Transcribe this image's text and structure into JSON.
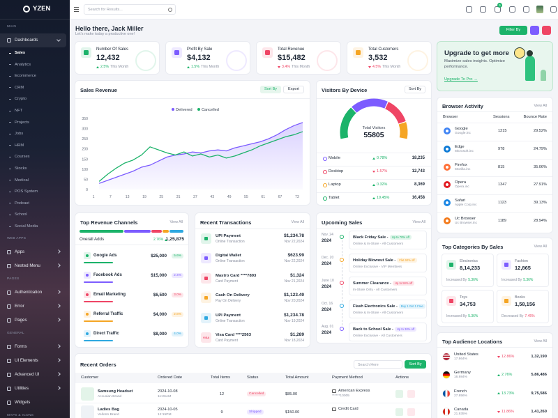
{
  "sidebar": {
    "brand": "YZEN",
    "active_child": 0,
    "sections": [
      {
        "title": "MAIN",
        "items": [
          {
            "label": "Dashboards",
            "expandable": true,
            "children": [
              "Sales",
              "Analytics",
              "Ecommerce",
              "CRM",
              "Crypto",
              "NFT",
              "Projects",
              "Jobs",
              "HRM",
              "Courses",
              "Stocks",
              "Medical",
              "POS System",
              "Podcast",
              "School",
              "Social Media"
            ]
          }
        ]
      },
      {
        "title": "WEB APPS",
        "items": [
          {
            "label": "Apps",
            "expandable": true
          },
          {
            "label": "Nested Menu",
            "expandable": true
          }
        ]
      },
      {
        "title": "PAGES",
        "items": [
          {
            "label": "Authentication",
            "expandable": true
          },
          {
            "label": "Error",
            "expandable": true
          },
          {
            "label": "Pages",
            "expandable": true
          }
        ]
      },
      {
        "title": "GENERAL",
        "items": [
          {
            "label": "Forms",
            "expandable": true
          },
          {
            "label": "UI Elements",
            "expandable": true
          },
          {
            "label": "Advanced UI",
            "expandable": true
          },
          {
            "label": "Utilities",
            "expandable": true
          },
          {
            "label": "Widgets",
            "expandable": false
          }
        ]
      },
      {
        "title": "MAPS & ICONS"
      }
    ]
  },
  "header": {
    "search_placeholder": "Search for Results...",
    "badge": "5"
  },
  "greeting": {
    "title": "Hello there, Jack Miller",
    "subtitle": "Let's make today a productive one!",
    "filter": "Filter By"
  },
  "stats": [
    {
      "title": "Number Of Sales",
      "value": "12,432",
      "change": "2.5%",
      "period": "This Month",
      "trend": "up",
      "color": "#1cb36a"
    },
    {
      "title": "Profit By Sale",
      "value": "$4,132",
      "change": "1.5%",
      "period": "This Month",
      "trend": "up",
      "color": "#7c5cff"
    },
    {
      "title": "Total Revenue",
      "value": "$15,482",
      "change": "3.4%",
      "period": "This Month",
      "trend": "down",
      "color": "#ef4565"
    },
    {
      "title": "Total Customers",
      "value": "3,532",
      "change": "4.5%",
      "period": "This Month",
      "trend": "down",
      "color": "#f5a524"
    }
  ],
  "upgrade": {
    "title": "Upgrade to get more",
    "text": "Maximize sales insights. Optimize performance.",
    "link": "Upgrade To Pro →"
  },
  "sales_revenue": {
    "title": "Sales Revenue",
    "sort": "Sort By",
    "export": "Export",
    "chart_data": {
      "type": "line",
      "x": [
        3,
        6,
        9,
        12,
        15,
        18,
        21,
        24,
        27,
        30,
        33,
        36,
        39,
        42,
        45,
        48,
        51,
        54,
        57,
        60,
        63,
        66,
        69,
        72,
        75
      ],
      "series": [
        {
          "name": "Delivered",
          "color": "#7c5cff",
          "values": [
            30,
            45,
            60,
            75,
            90,
            110,
            120,
            140,
            160,
            170,
            175,
            185,
            180,
            190,
            195,
            190,
            205,
            215,
            225,
            235,
            250,
            270,
            295,
            315,
            330
          ]
        },
        {
          "name": "Cancelled",
          "color": "#1cb36a",
          "values": [
            40,
            75,
            105,
            130,
            145,
            170,
            210,
            195,
            180,
            170,
            185,
            165,
            175,
            160,
            170,
            155,
            165,
            180,
            195,
            215,
            230,
            245,
            260,
            270,
            285
          ]
        }
      ],
      "xlim": [
        0,
        76
      ],
      "xticks": [
        1,
        7,
        13,
        19,
        25,
        31,
        37,
        43,
        49,
        55,
        61,
        67,
        73
      ],
      "ylim": [
        0,
        350
      ],
      "yticks": [
        0,
        50,
        100,
        150,
        200,
        250,
        300,
        350
      ],
      "grid": false,
      "legend": "top"
    }
  },
  "visitors": {
    "title": "Visitors By Device",
    "sort": "Sort By",
    "total_label": "Total Visitors",
    "total": 55805,
    "chart_data": {
      "type": "donut",
      "categories": [
        "Mobile",
        "Desktop",
        "Laptop",
        "Tablet"
      ],
      "values": [
        18235,
        12743,
        8369,
        16458
      ],
      "value_labels": [
        "18,235",
        "12,743",
        "8,369",
        "16,458"
      ],
      "changes": [
        "0.78%",
        "1.57%",
        "0.32%",
        "19.45%"
      ],
      "trends": [
        "up",
        "down",
        "up",
        "up"
      ],
      "colors": [
        "#7c5cff",
        "#ef4565",
        "#f5a524",
        "#1cb36a"
      ]
    }
  },
  "browser": {
    "title": "Browser Activity",
    "view_all": "View All",
    "headers": [
      "Browser",
      "Sessions",
      "Bounce Rate"
    ],
    "rows": [
      {
        "name": "Google",
        "sub": "Google.inc",
        "sessions": "1215",
        "bounce": "29.52%",
        "color": "#4285f4"
      },
      {
        "name": "Edge",
        "sub": "Microsoft.inc",
        "sessions": "978",
        "bounce": "24.79%",
        "color": "#0f7bd6"
      },
      {
        "name": "Firefox",
        "sub": "Mozilla.inc",
        "sessions": "815",
        "bounce": "35.06%",
        "color": "#ff7139"
      },
      {
        "name": "Opera",
        "sub": "Opera.inc",
        "sessions": "1347",
        "bounce": "27.91%",
        "color": "#e31f26"
      },
      {
        "name": "Safari",
        "sub": "Apple Corp.inc",
        "sessions": "1123",
        "bounce": "39.13%",
        "color": "#1e88e5"
      },
      {
        "name": "Uc Browser",
        "sub": "Uc Browser.inc",
        "sessions": "1189",
        "bounce": "28.94%",
        "color": "#f37b1d"
      }
    ]
  },
  "categories": {
    "title": "Top Categories By Sales",
    "view_all": "View All",
    "items": [
      {
        "name": "Electronics",
        "value": "8,14,233",
        "label": "Increased By",
        "change": "5.36%",
        "trend": "up",
        "color": "#1cb36a"
      },
      {
        "name": "Fashion",
        "value": "12,865",
        "label": "Increased By",
        "change": "5.36%",
        "trend": "up",
        "color": "#7c5cff"
      },
      {
        "name": "Toys",
        "value": "34,753",
        "label": "Increased By",
        "change": "5.36%",
        "trend": "up",
        "color": "#ef4565"
      },
      {
        "name": "Books",
        "value": "1,58,156",
        "label": "Decreased By",
        "change": "7.45%",
        "trend": "down",
        "color": "#f5a524"
      }
    ]
  },
  "audience": {
    "title": "Top Audience Locations",
    "view_all": "View All",
    "rows": [
      {
        "country": "United States",
        "share": "17.864%",
        "change": "12.86%",
        "trend": "down",
        "value": "1,32,190"
      },
      {
        "country": "Germany",
        "share": "16.984%",
        "change": "2.76%",
        "trend": "up",
        "value": "5,86,486"
      },
      {
        "country": "French",
        "share": "27.856%",
        "change": "13.73%",
        "trend": "up",
        "value": "9,75,586"
      },
      {
        "country": "Canada",
        "share": "21.935%",
        "change": "11.86%",
        "trend": "down",
        "value": "1,41,260"
      }
    ]
  },
  "channels": {
    "title": "Top Revenue Channels",
    "view_all": "View All",
    "overall_label": "Overall Adds",
    "overall_change": "2.76%",
    "overall_value": "1,25,875",
    "names": [
      "Google Ads",
      "Facebook Ads",
      "Email Marketing",
      "Referral Traffic",
      "Direct Traffic"
    ],
    "values": [
      25000,
      15000,
      6500,
      4000,
      8000
    ],
    "value_labels": [
      "$25,000",
      "$15,000",
      "$6,500",
      "$4,000",
      "$8,000"
    ],
    "changes": [
      "5.6%",
      "2.4%",
      "3.0%",
      "2.6%",
      "4.0%"
    ],
    "colors": [
      "#1cb36a",
      "#7c5cff",
      "#ef4565",
      "#f5a524",
      "#2ea8e0"
    ]
  },
  "transactions": {
    "title": "Recent Transactions",
    "view_all": "View All",
    "rows": [
      {
        "name": "UPI Payment",
        "type": "Online Transaction",
        "amount": "$1,234.78",
        "date": "Nov 22,2024",
        "color": "#1cb36a"
      },
      {
        "name": "Digital Wallet",
        "type": "Online Transaction",
        "amount": "$623.99",
        "date": "Nov 22,2024",
        "color": "#7c5cff"
      },
      {
        "name": "Mastro Card ****7893",
        "type": "Card Payment",
        "amount": "$1,324",
        "date": "Nov 21,2024",
        "color": "#ef4565"
      },
      {
        "name": "Cash On Delivery",
        "type": "Pay On Delivery",
        "amount": "$1,123.49",
        "date": "Nov 20,2024",
        "color": "#f5a524"
      },
      {
        "name": "UPI Payment",
        "type": "Online Transaction",
        "amount": "$1,234.78",
        "date": "Nov 19,2024",
        "color": "#2ea8e0"
      },
      {
        "name": "Visa Card ****2563",
        "type": "Card Payment",
        "amount": "$1,289",
        "date": "Nov 18,2024",
        "color": "#ef4565",
        "icon_text": "VISA"
      }
    ]
  },
  "upcoming": {
    "title": "Upcoming Sales",
    "view_all": "View All",
    "rows": [
      {
        "date": "Nov. 24",
        "year": "2024",
        "title": "Black Friday Sale -",
        "badge": "Up to 70% off",
        "sub": "Online & In-Store - All Customers",
        "color": "#1cb36a"
      },
      {
        "date": "Dec. 20",
        "year": "2024",
        "title": "Holiday Blowout Sale -",
        "badge": "Flat 60% off",
        "sub": "Online Exclusive - VIP Members",
        "color": "#f5a524"
      },
      {
        "date": "June 10",
        "year": "2024",
        "title": "Summer Clearance -",
        "badge": "Up to 50% off",
        "sub": "In-Store Only - All Customers",
        "color": "#ef4565"
      },
      {
        "date": "Oct. 16",
        "year": "2024",
        "title": "Flash Electronics Sale -",
        "badge": "Buy 1 Get 1 Free",
        "sub": "Online & In-Store - All Customers",
        "color": "#2ea8e0"
      },
      {
        "date": "Aug. 01",
        "year": "2024",
        "title": "Back to School Sale -",
        "badge": "Up to 30% off",
        "sub": "Online Exclusive - All Customers",
        "color": "#7c5cff"
      }
    ]
  },
  "orders": {
    "title": "Recent Orders",
    "search_placeholder": "Search Here",
    "sort": "Sort By",
    "headers": [
      "Customer",
      "Ordered Date",
      "Total Items",
      "Status",
      "Total Amount",
      "Payment Method",
      "Actions"
    ],
    "rows": [
      {
        "product": "Samsung Headset",
        "brand": "Accusian Brand",
        "date": "2024-10-08",
        "time": "11:26AM",
        "items": "12",
        "status": "Cancelled",
        "amount": "$85.00",
        "payment": "American Express",
        "card": "******10005"
      },
      {
        "product": "Ladies Bag",
        "brand": "Vellorm Brand",
        "date": "2024-10-05",
        "time": "12:15PM",
        "items": "9",
        "status": "Shipped",
        "amount": "$150.00",
        "payment": "Credit Card"
      }
    ]
  }
}
